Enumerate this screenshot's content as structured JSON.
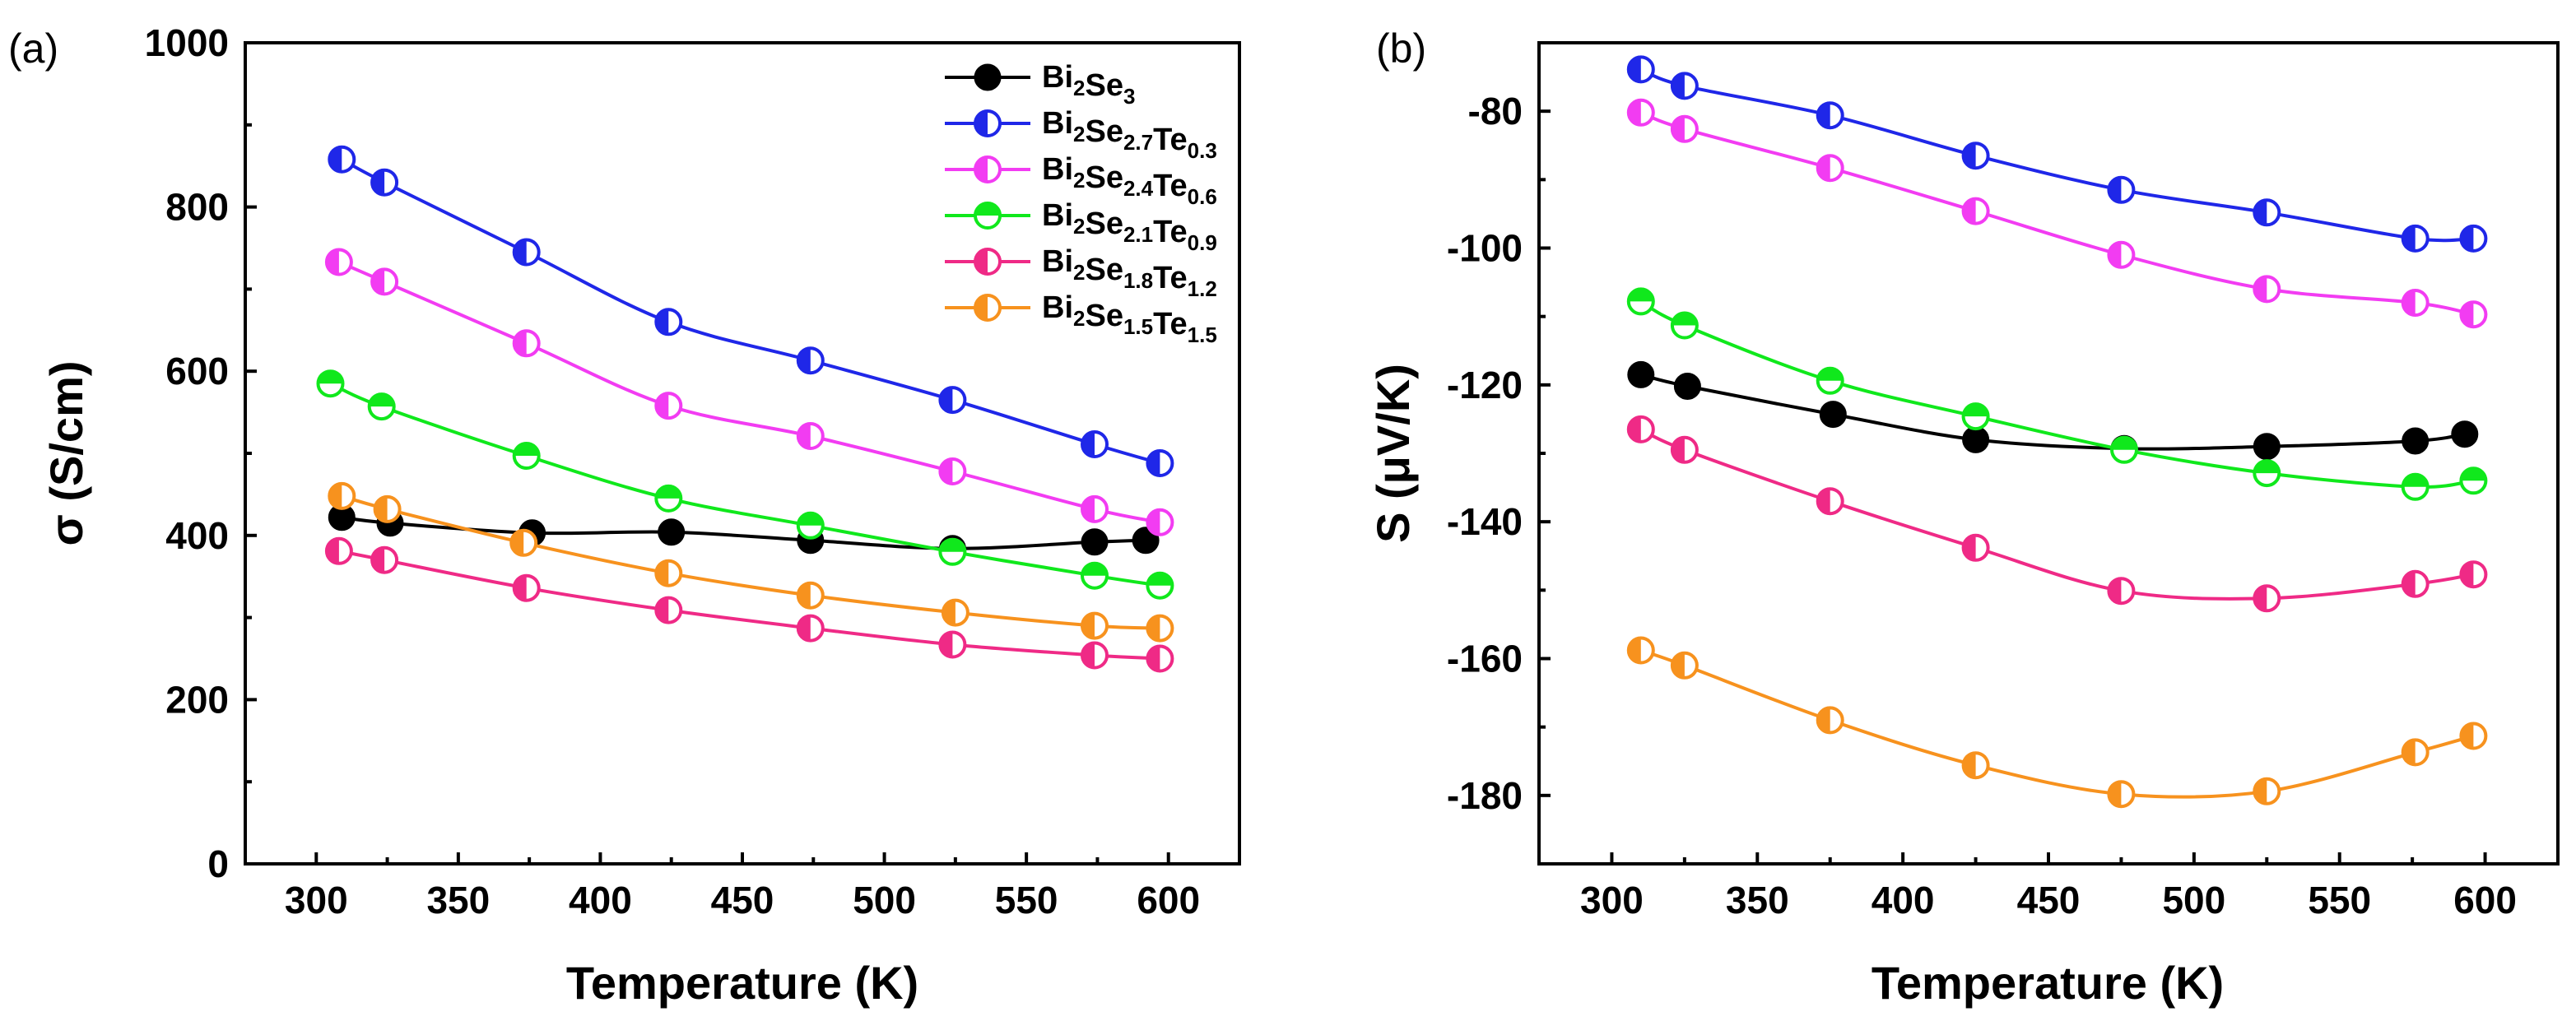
{
  "chart_data": [
    {
      "panel_label": "(a)",
      "type": "line",
      "xlabel": "Temperature (K)",
      "ylabel": "σ (S/cm)",
      "xlim": [
        275,
        625
      ],
      "ylim": [
        0,
        1000
      ],
      "xticks": [
        "300",
        "350",
        "400",
        "450",
        "500",
        "550",
        "600"
      ],
      "yticks": [
        "0",
        "200",
        "400",
        "600",
        "800",
        "1000"
      ],
      "legend_position": "top-right",
      "series": [
        {
          "key": "bi2se3",
          "name": "Bi2Se3",
          "color": "#000000",
          "marker": "filled",
          "x": [
            309,
            326,
            376,
            425,
            474,
            524,
            574,
            592
          ],
          "y": [
            422,
            415,
            403,
            404,
            394,
            384,
            392,
            394
          ]
        },
        {
          "key": "te03",
          "name": "Bi2Se2.7Te0.3",
          "color": "#1f27e8",
          "marker": "half-left",
          "x": [
            309,
            324,
            374,
            424,
            474,
            524,
            574,
            597
          ],
          "y": [
            858,
            830,
            745,
            660,
            613,
            565,
            511,
            488
          ]
        },
        {
          "key": "te06",
          "name": "Bi2Se2.4Te0.6",
          "color": "#f23cf2",
          "marker": "half-left",
          "x": [
            308,
            324,
            374,
            424,
            474,
            524,
            574,
            597
          ],
          "y": [
            733,
            709,
            634,
            558,
            521,
            478,
            432,
            416
          ]
        },
        {
          "key": "te09",
          "name": "Bi2Se2.1Te0.9",
          "color": "#10e81c",
          "marker": "half-top",
          "x": [
            305,
            323,
            374,
            424,
            474,
            524,
            574,
            597
          ],
          "y": [
            585,
            557,
            497,
            445,
            412,
            380,
            351,
            339
          ]
        },
        {
          "key": "te12",
          "name": "Bi2Se1.8Te1.2",
          "color": "#ef2a86",
          "marker": "half-left",
          "x": [
            308,
            324,
            374,
            424,
            474,
            524,
            574,
            597
          ],
          "y": [
            381,
            370,
            336,
            309,
            287,
            267,
            254,
            250
          ]
        },
        {
          "key": "te15",
          "name": "Bi2Se1.5Te1.5",
          "color": "#f7921e",
          "marker": "half-left",
          "x": [
            309,
            325,
            373,
            424,
            474,
            525,
            574,
            597
          ],
          "y": [
            448,
            432,
            391,
            354,
            327,
            306,
            290,
            287
          ]
        }
      ]
    },
    {
      "panel_label": "(b)",
      "type": "line",
      "xlabel": "Temperature (K)",
      "ylabel": "S (μV/K)",
      "xlim": [
        275,
        625
      ],
      "ylim": [
        -190,
        -70
      ],
      "xticks": [
        "300",
        "350",
        "400",
        "450",
        "500",
        "550",
        "600"
      ],
      "yticks": [
        "-180",
        "-160",
        "-140",
        "-120",
        "-100",
        "-80"
      ],
      "series": [
        {
          "key": "bi2se3",
          "name": "Bi2Se3",
          "color": "#000000",
          "marker": "filled",
          "x": [
            310,
            326,
            376,
            425,
            476,
            525,
            576,
            593
          ],
          "y": [
            -118.5,
            -120.2,
            -124.3,
            -128.0,
            -129.3,
            -129.0,
            -128.2,
            -127.2
          ]
        },
        {
          "key": "te03",
          "name": "Bi2Se2.7Te0.3",
          "color": "#1f27e8",
          "marker": "half-left",
          "x": [
            310,
            325,
            375,
            425,
            475,
            525,
            576,
            596
          ],
          "y": [
            -73.9,
            -76.3,
            -80.6,
            -86.5,
            -91.5,
            -94.8,
            -98.6,
            -98.6
          ]
        },
        {
          "key": "te06",
          "name": "Bi2Se2.4Te0.6",
          "color": "#f23cf2",
          "marker": "half-left",
          "x": [
            310,
            325,
            375,
            425,
            475,
            525,
            576,
            596
          ],
          "y": [
            -80.2,
            -82.6,
            -88.3,
            -94.6,
            -101.0,
            -106.0,
            -108.0,
            -109.7
          ]
        },
        {
          "key": "te09",
          "name": "Bi2Se2.1Te0.9",
          "color": "#10e81c",
          "marker": "half-top",
          "x": [
            310,
            325,
            375,
            425,
            476,
            525,
            576,
            596
          ],
          "y": [
            -107.8,
            -111.3,
            -119.4,
            -124.6,
            -129.5,
            -132.9,
            -134.9,
            -134.0
          ]
        },
        {
          "key": "te12",
          "name": "Bi2Se1.8Te1.2",
          "color": "#ef2a86",
          "marker": "half-left",
          "x": [
            310,
            325,
            375,
            425,
            475,
            525,
            576,
            596
          ],
          "y": [
            -126.5,
            -129.5,
            -137.0,
            -143.8,
            -150.1,
            -151.2,
            -149.1,
            -147.7
          ]
        },
        {
          "key": "te15",
          "name": "Bi2Se1.5Te1.5",
          "color": "#f7921e",
          "marker": "half-left",
          "x": [
            310,
            325,
            375,
            425,
            475,
            525,
            576,
            596
          ],
          "y": [
            -158.8,
            -161.0,
            -169.0,
            -175.6,
            -179.8,
            -179.4,
            -173.7,
            -171.3
          ]
        }
      ]
    }
  ]
}
